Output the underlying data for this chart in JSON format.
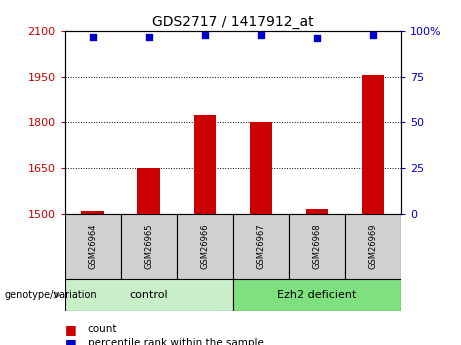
{
  "title": "GDS2717 / 1417912_at",
  "samples": [
    "GSM26964",
    "GSM26965",
    "GSM26966",
    "GSM26967",
    "GSM26968",
    "GSM26969"
  ],
  "count_values": [
    1510,
    1650,
    1825,
    1800,
    1515,
    1955
  ],
  "percentile_values": [
    97,
    97,
    98,
    98,
    96,
    98
  ],
  "groups": [
    {
      "label": "control",
      "indices": [
        0,
        1,
        2
      ],
      "color": "#c8efc8"
    },
    {
      "label": "Ezh2 deficient",
      "indices": [
        3,
        4,
        5
      ],
      "color": "#7ee07e"
    }
  ],
  "ylim_left": [
    1500,
    2100
  ],
  "yticks_left": [
    1500,
    1650,
    1800,
    1950,
    2100
  ],
  "ylim_right": [
    0,
    100
  ],
  "yticks_right": [
    0,
    25,
    50,
    75,
    100
  ],
  "bar_color": "#cc0000",
  "dot_color": "#0000cc",
  "bar_width": 0.4,
  "left_tick_color": "#cc0000",
  "right_tick_color": "#0000cc",
  "legend_count_label": "count",
  "legend_percentile_label": "percentile rank within the sample",
  "genotype_label": "genotype/variation",
  "sample_box_color": "#d0d0d0",
  "figure_bg": "#ffffff"
}
